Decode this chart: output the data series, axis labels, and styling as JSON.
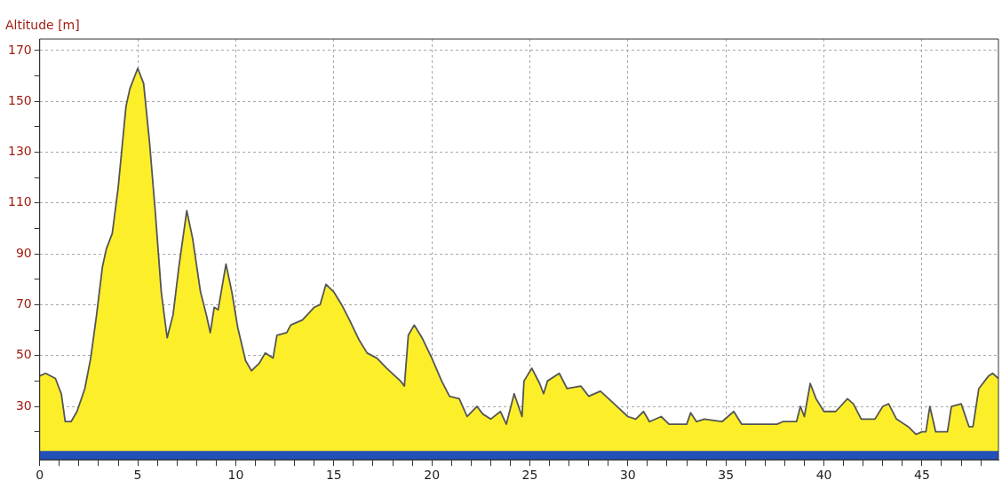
{
  "chart_data": {
    "type": "area",
    "ylabel": "Altitude [m]",
    "x": [
      0,
      0.3,
      0.8,
      1.1,
      1.3,
      1.6,
      1.9,
      2.3,
      2.6,
      2.9,
      3.2,
      3.4,
      3.7,
      4.0,
      4.4,
      4.6,
      5.0,
      5.3,
      5.6,
      5.9,
      6.2,
      6.5,
      6.8,
      7.1,
      7.5,
      7.8,
      8.2,
      8.5,
      8.7,
      8.9,
      9.1,
      9.5,
      9.8,
      10.1,
      10.5,
      10.8,
      11.2,
      11.5,
      11.9,
      12.1,
      12.6,
      12.8,
      13.4,
      14.0,
      14.3,
      14.6,
      15.0,
      15.4,
      15.8,
      16.3,
      16.7,
      17.2,
      17.7,
      18.4,
      18.6,
      18.8,
      19.1,
      19.5,
      20.0,
      20.5,
      20.9,
      21.4,
      21.8,
      22.3,
      22.6,
      23.0,
      23.5,
      23.8,
      24.2,
      24.6,
      24.7,
      25.1,
      25.5,
      25.7,
      25.9,
      26.5,
      26.9,
      27.6,
      28.0,
      28.6,
      29.3,
      30.0,
      30.4,
      30.8,
      31.1,
      31.7,
      32.1,
      33.0,
      33.2,
      33.5,
      33.9,
      34.8,
      35.4,
      35.8,
      37.6,
      37.9,
      38.6,
      38.8,
      39.0,
      39.3,
      39.6,
      40.0,
      40.6,
      41.2,
      41.5,
      41.9,
      42.6,
      43.0,
      43.3,
      43.7,
      44.3,
      44.7,
      45.0,
      45.2,
      45.4,
      45.7,
      46.3,
      46.5,
      47.0,
      47.4,
      47.6,
      47.9,
      48.4,
      48.6,
      48.9
    ],
    "series": [
      {
        "color": "#fcef2a",
        "values": [
          42,
          43,
          41,
          35,
          24,
          24,
          28,
          37,
          49,
          66,
          85,
          92,
          98,
          116,
          148,
          155,
          163,
          157,
          134,
          106,
          75,
          57,
          66,
          85,
          107,
          96,
          75,
          66,
          59,
          69,
          68,
          86,
          75,
          61,
          48,
          44,
          47,
          51,
          49,
          58,
          59,
          62,
          64,
          69,
          70,
          78,
          75,
          70,
          64,
          56,
          51,
          49,
          45,
          40,
          38,
          58,
          62,
          57,
          49,
          40,
          34,
          33,
          26,
          30,
          27,
          25,
          28,
          23,
          35,
          26,
          40,
          45,
          39,
          35,
          40,
          43,
          37,
          38,
          34,
          36,
          31,
          26,
          25,
          28,
          24,
          26,
          23,
          23,
          27.5,
          24,
          25,
          24,
          28,
          23,
          23,
          24,
          24,
          30,
          26,
          39,
          33,
          28,
          28,
          33,
          31,
          25,
          25,
          30,
          31,
          25,
          22,
          19,
          20,
          20,
          30,
          20,
          20,
          30,
          31,
          22,
          22,
          37,
          42,
          43,
          41
        ]
      }
    ],
    "xlim": [
      0,
      48.9
    ],
    "ylim": [
      9,
      174.5
    ],
    "xticks": [
      0,
      {
        "value": 1,
        "label": null
      },
      {
        "value": 2,
        "label": null
      },
      {
        "value": 3,
        "label": null
      },
      {
        "value": 4,
        "label": null
      },
      5,
      {
        "value": 6,
        "label": null
      },
      {
        "value": 7,
        "label": null
      },
      {
        "value": 8,
        "label": null
      },
      {
        "value": 9,
        "label": null
      },
      10,
      {
        "value": 11,
        "label": null
      },
      {
        "value": 12,
        "label": null
      },
      {
        "value": 13,
        "label": null
      },
      {
        "value": 14,
        "label": null
      },
      15,
      {
        "value": 16,
        "label": null
      },
      {
        "value": 17,
        "label": null
      },
      {
        "value": 18,
        "label": null
      },
      {
        "value": 19,
        "label": null
      },
      20,
      {
        "value": 21,
        "label": null
      },
      {
        "value": 22,
        "label": null
      },
      {
        "value": 23,
        "label": null
      },
      {
        "value": 24,
        "label": null
      },
      25,
      {
        "value": 26,
        "label": null
      },
      {
        "value": 27,
        "label": null
      },
      {
        "value": 28,
        "label": null
      },
      {
        "value": 29,
        "label": null
      },
      30,
      {
        "value": 31,
        "label": null
      },
      {
        "value": 32,
        "label": null
      },
      {
        "value": 33,
        "label": null
      },
      {
        "value": 34,
        "label": null
      },
      35,
      {
        "value": 36,
        "label": null
      },
      {
        "value": 37,
        "label": null
      },
      {
        "value": 38,
        "label": null
      },
      {
        "value": 39,
        "label": null
      },
      40,
      {
        "value": 41,
        "label": null
      },
      {
        "value": 42,
        "label": null
      },
      {
        "value": 43,
        "label": null
      },
      {
        "value": 44,
        "label": null
      },
      45,
      {
        "value": 46,
        "label": null
      },
      {
        "value": 47,
        "label": null
      },
      {
        "value": 48,
        "label": null
      }
    ],
    "yticks": [
      {
        "value": 20,
        "label": null
      },
      30,
      {
        "value": 40,
        "label": null
      },
      50,
      {
        "value": 60,
        "label": null
      },
      70,
      {
        "value": 80,
        "label": null
      },
      90,
      {
        "value": 100,
        "label": null
      },
      110,
      {
        "value": 120,
        "label": null
      },
      130,
      {
        "value": 140,
        "label": null
      },
      150,
      {
        "value": 160,
        "label": null
      },
      170
    ],
    "grid": true,
    "bands": [
      {
        "axis": "y",
        "from": 9,
        "to": 12.5,
        "color": "#2350b8"
      }
    ]
  }
}
